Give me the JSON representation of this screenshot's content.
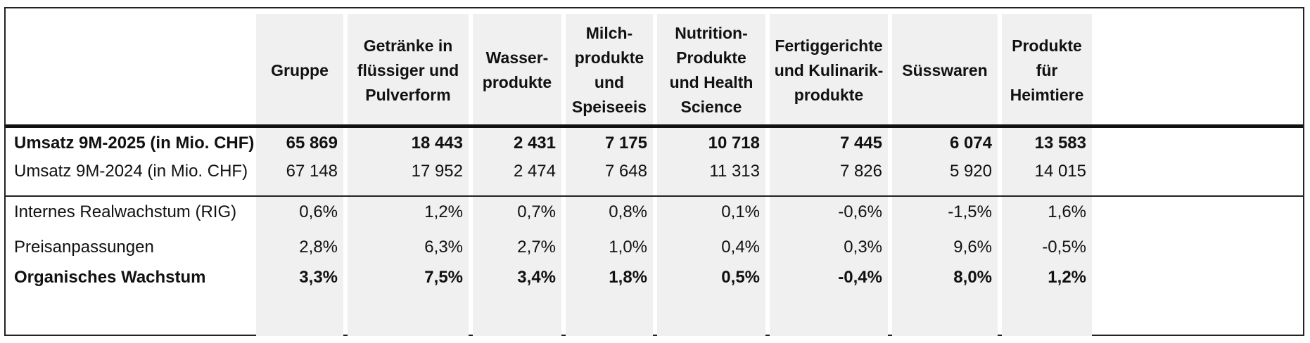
{
  "table": {
    "columns": [
      {
        "label": "Gruppe"
      },
      {
        "label": "Getränke in\nflüssiger und\nPulverform"
      },
      {
        "label": "Wasser-\nprodukte"
      },
      {
        "label": "Milch-\nprodukte\nund\nSpeiseeis"
      },
      {
        "label": "Nutrition-\nProdukte\nund Health\nScience"
      },
      {
        "label": "Fertiggerichte\nund Kulinarik-\nprodukte"
      },
      {
        "label": "Süsswaren"
      },
      {
        "label": "Produkte\nfür\nHeimtiere"
      }
    ],
    "rows": [
      {
        "label": "Umsatz 9M-2025 (in Mio. CHF)",
        "bold": true,
        "values": [
          "65 869",
          "18 443",
          "2 431",
          "7 175",
          "10 718",
          "7 445",
          "6 074",
          "13 583"
        ]
      },
      {
        "label": "Umsatz 9M-2024 (in Mio. CHF)",
        "bold": false,
        "values": [
          "67 148",
          "17 952",
          "2 474",
          "7 648",
          "11 313",
          "7 826",
          "5 920",
          "14 015"
        ]
      },
      {
        "label": "Internes Realwachstum (RIG)",
        "bold": false,
        "values": [
          "0,6%",
          "1,2%",
          "0,7%",
          "0,8%",
          "0,1%",
          "-0,6%",
          "-1,5%",
          "1,6%"
        ]
      },
      {
        "label": "Preisanpassungen",
        "bold": false,
        "values": [
          "2,8%",
          "6,3%",
          "2,7%",
          "1,0%",
          "0,4%",
          "0,3%",
          "9,6%",
          "-0,5%"
        ]
      },
      {
        "label": "Organisches Wachstum",
        "bold": true,
        "values": [
          "3,3%",
          "7,5%",
          "3,4%",
          "1,8%",
          "0,5%",
          "-0,4%",
          "8,0%",
          "1,2%"
        ]
      }
    ]
  }
}
